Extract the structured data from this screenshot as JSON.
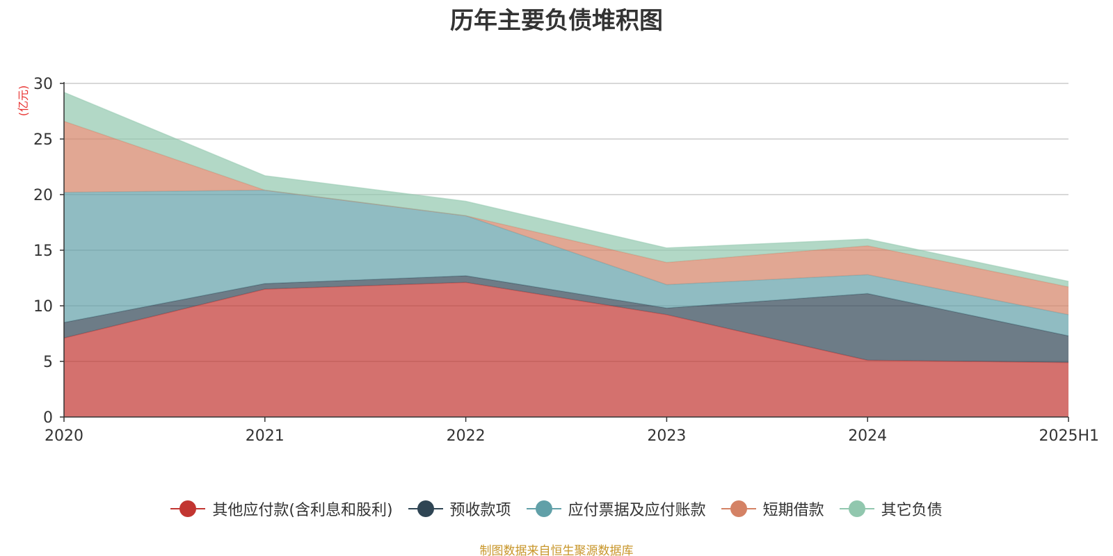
{
  "title": "历年主要负债堆积图",
  "y_unit": "(亿元)",
  "footer": "制图数据来自恒生聚源数据库",
  "chart_data": {
    "type": "area",
    "stacked": true,
    "categories": [
      "2020",
      "2021",
      "2022",
      "2023",
      "2024",
      "2025H1"
    ],
    "ylim": [
      0,
      30
    ],
    "yticks": [
      "0",
      "5",
      "10",
      "15",
      "20",
      "25",
      "30"
    ],
    "ylabel": "(亿元)",
    "grid": true,
    "legend_position": "bottom",
    "series": [
      {
        "name": "其他应付款(含利息和股利)",
        "color": "#c23531",
        "values": [
          7.1,
          11.5,
          12.1,
          9.2,
          5.1,
          4.9
        ]
      },
      {
        "name": "预收款项",
        "color": "#2f4554",
        "values": [
          1.4,
          0.5,
          0.6,
          0.6,
          6.0,
          2.4
        ]
      },
      {
        "name": "应付票据及应付账款",
        "color": "#61a0a8",
        "values": [
          11.7,
          8.4,
          5.4,
          2.1,
          1.7,
          1.9
        ]
      },
      {
        "name": "短期借款",
        "color": "#d48265",
        "values": [
          6.4,
          0.0,
          0.0,
          2.0,
          2.6,
          2.5
        ]
      },
      {
        "name": "其它负债",
        "color": "#91c7ae",
        "values": [
          2.6,
          1.3,
          1.3,
          1.3,
          0.6,
          0.5
        ]
      }
    ]
  }
}
